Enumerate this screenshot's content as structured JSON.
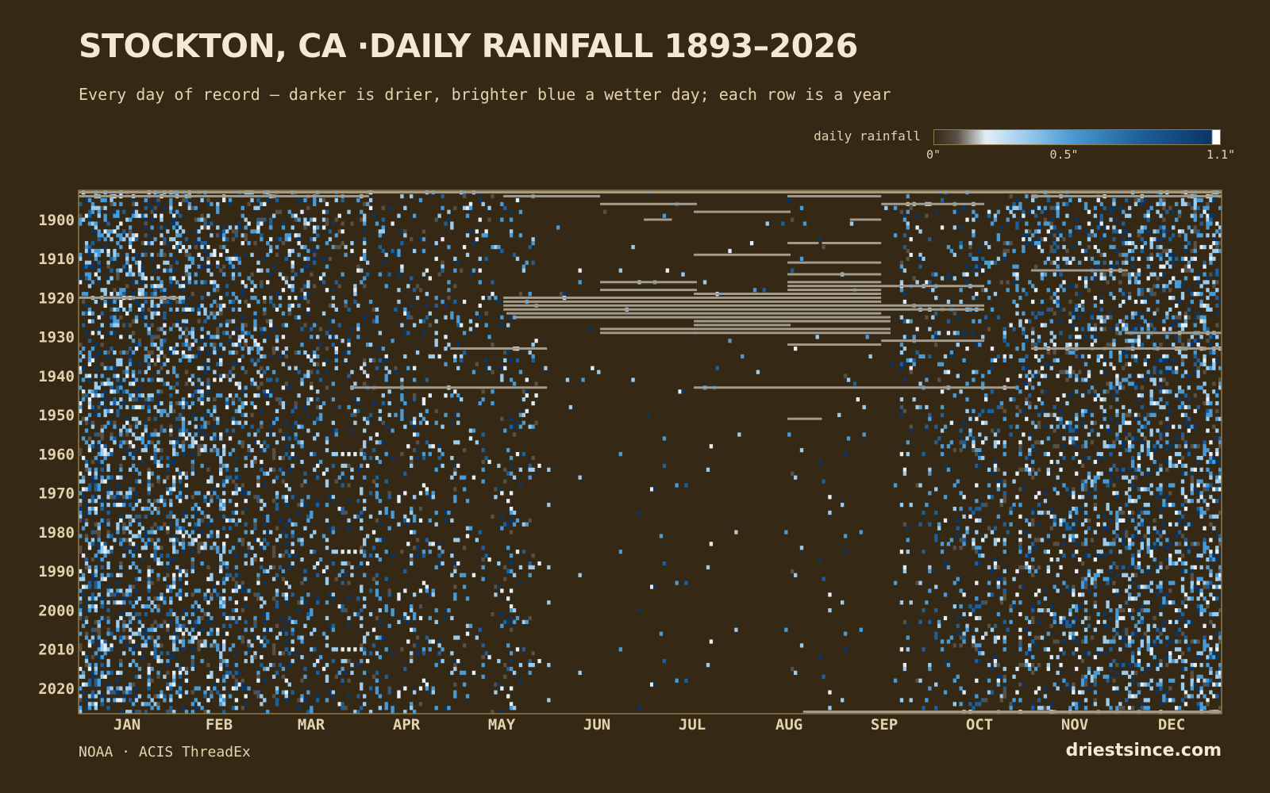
{
  "page": {
    "title": "STOCKTON, CA ·DAILY RAINFALL 1893–2026",
    "subtitle": "Every day of record — darker is drier, brighter blue a wetter day; each row is a year",
    "source": "NOAA · ACIS ThreadEx",
    "brand": "driestsince.com"
  },
  "colors": {
    "background": "#352915",
    "frame": "#8f7a4a",
    "text": "#e2d3ae",
    "title": "#f4ead3",
    "missing": "#a39b8c",
    "scale": [
      "#352915",
      "#5a5042",
      "#e4eef6",
      "#9ccbec",
      "#4a9ad4",
      "#1d5f9a",
      "#0b3565",
      "#ffffff"
    ]
  },
  "chart_data": {
    "type": "heatmap",
    "title": "STOCKTON, CA ·DAILY RAINFALL 1893–2026",
    "subtitle": "Every day of record — darker is drier, brighter blue a wetter day; each row is a year",
    "x": {
      "unit": "day of year",
      "range": [
        1,
        366
      ],
      "tick_labels": [
        "JAN",
        "FEB",
        "MAR",
        "APR",
        "MAY",
        "JUN",
        "JUL",
        "AUG",
        "SEP",
        "OCT",
        "NOV",
        "DEC"
      ]
    },
    "y": {
      "unit": "year",
      "range": [
        1893,
        2026
      ],
      "tick_values": [
        1900,
        1910,
        1920,
        1930,
        1940,
        1950,
        1960,
        1970,
        1980,
        1990,
        2000,
        2010,
        2020
      ]
    },
    "color_scale": {
      "label": "daily rainfall",
      "unit": "inches",
      "min": 0,
      "max": 1.1,
      "tick_labels": [
        "0\"",
        "0.5\"",
        "1.1\""
      ],
      "tick_values": [
        0,
        0.5,
        1.1
      ]
    },
    "missing_data_ranges": [
      {
        "years": [
          1893,
          1893
        ],
        "days": [
          1,
          366
        ]
      },
      {
        "years": [
          1894,
          1894
        ],
        "days": [
          1,
          93
        ]
      },
      {
        "years": [
          1894,
          1894
        ],
        "days": [
          137,
          167
        ]
      },
      {
        "years": [
          1894,
          1894
        ],
        "days": [
          228,
          257
        ]
      },
      {
        "years": [
          1894,
          1894
        ],
        "days": [
          306,
          366
        ]
      },
      {
        "years": [
          1896,
          1896
        ],
        "days": [
          168,
          198
        ]
      },
      {
        "years": [
          1896,
          1896
        ],
        "days": [
          258,
          290
        ]
      },
      {
        "years": [
          1898,
          1898
        ],
        "days": [
          198,
          228
        ]
      },
      {
        "years": [
          1900,
          1900
        ],
        "days": [
          248,
          257
        ]
      },
      {
        "years": [
          1900,
          1900
        ],
        "days": [
          182,
          190
        ]
      },
      {
        "years": [
          1906,
          1906
        ],
        "days": [
          228,
          237
        ]
      },
      {
        "years": [
          1906,
          1906
        ],
        "days": [
          239,
          257
        ]
      },
      {
        "years": [
          1909,
          1909
        ],
        "days": [
          198,
          228
        ]
      },
      {
        "years": [
          1911,
          1911
        ],
        "days": [
          228,
          257
        ]
      },
      {
        "years": [
          1913,
          1913
        ],
        "days": [
          306,
          336
        ]
      },
      {
        "years": [
          1914,
          1914
        ],
        "days": [
          228,
          257
        ]
      },
      {
        "years": [
          1916,
          1916
        ],
        "days": [
          168,
          198
        ]
      },
      {
        "years": [
          1916,
          1916
        ],
        "days": [
          228,
          257
        ]
      },
      {
        "years": [
          1917,
          1917
        ],
        "days": [
          228,
          290
        ]
      },
      {
        "years": [
          1918,
          1918
        ],
        "days": [
          168,
          198
        ]
      },
      {
        "years": [
          1918,
          1918
        ],
        "days": [
          228,
          257
        ]
      },
      {
        "years": [
          1919,
          1919
        ],
        "days": [
          198,
          257
        ]
      },
      {
        "years": [
          1920,
          1920
        ],
        "days": [
          137,
          257
        ]
      },
      {
        "years": [
          1920,
          1920
        ],
        "days": [
          1,
          32
        ]
      },
      {
        "years": [
          1921,
          1921
        ],
        "days": [
          137,
          257
        ]
      },
      {
        "years": [
          1922,
          1922
        ],
        "days": [
          137,
          290
        ]
      },
      {
        "years": [
          1923,
          1923
        ],
        "days": [
          137,
          290
        ]
      },
      {
        "years": [
          1924,
          1924
        ],
        "days": [
          138,
          257
        ]
      },
      {
        "years": [
          1925,
          1925
        ],
        "days": [
          140,
          260
        ]
      },
      {
        "years": [
          1926,
          1926
        ],
        "days": [
          198,
          260
        ]
      },
      {
        "years": [
          1927,
          1927
        ],
        "days": [
          198,
          228
        ]
      },
      {
        "years": [
          1928,
          1928
        ],
        "days": [
          168,
          260
        ]
      },
      {
        "years": [
          1929,
          1929
        ],
        "days": [
          168,
          198
        ]
      },
      {
        "years": [
          1929,
          1929
        ],
        "days": [
          198,
          260
        ]
      },
      {
        "years": [
          1929,
          1929
        ],
        "days": [
          336,
          366
        ]
      },
      {
        "years": [
          1931,
          1931
        ],
        "days": [
          258,
          290
        ]
      },
      {
        "years": [
          1932,
          1932
        ],
        "days": [
          228,
          257
        ]
      },
      {
        "years": [
          1933,
          1933
        ],
        "days": [
          120,
          150
        ]
      },
      {
        "years": [
          1933,
          1933
        ],
        "days": [
          306,
          366
        ]
      },
      {
        "years": [
          1943,
          1943
        ],
        "days": [
          88,
          150
        ]
      },
      {
        "years": [
          1943,
          1943
        ],
        "days": [
          198,
          300
        ]
      },
      {
        "years": [
          1951,
          1951
        ],
        "days": [
          228,
          238
        ]
      },
      {
        "years": [
          2026,
          2026
        ],
        "days": [
          233,
          366
        ]
      }
    ]
  }
}
